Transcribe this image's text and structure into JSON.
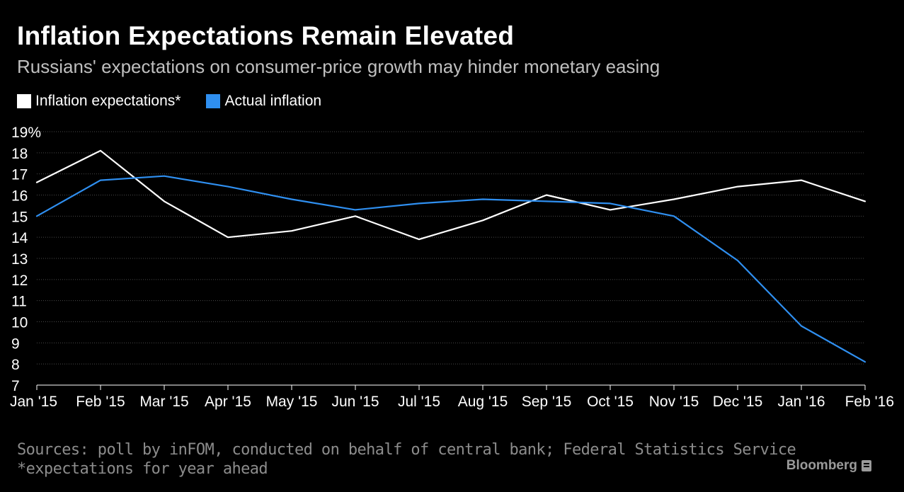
{
  "title": "Inflation Expectations Remain Elevated",
  "subtitle": "Russians' expectations on consumer-price growth may hinder monetary easing",
  "footer": {
    "sources": "Sources: poll by inFOM, conducted on behalf of central bank; Federal Statistics Service",
    "note": "*expectations for year ahead"
  },
  "brand": "Bloomberg",
  "colors": {
    "background": "#000000",
    "expectations": "#ffffff",
    "actual": "#2f8ff0",
    "grid": "#4a4a4a",
    "tick_text": "#ffffff"
  },
  "chart_data": {
    "type": "line",
    "title": "Inflation Expectations Remain Elevated",
    "subtitle": "Russians' expectations on consumer-price growth may hinder monetary easing",
    "categories": [
      "Jan '15",
      "Feb '15",
      "Mar '15",
      "Apr '15",
      "May '15",
      "Jun '15",
      "Jul '15",
      "Aug '15",
      "Sep '15",
      "Oct '15",
      "Nov '15",
      "Dec '15",
      "Jan '16",
      "Feb '16"
    ],
    "series": [
      {
        "name": "Inflation expectations*",
        "color": "#ffffff",
        "values": [
          16.6,
          18.1,
          15.7,
          14.0,
          14.3,
          15.0,
          13.9,
          14.8,
          16.0,
          15.3,
          15.8,
          16.4,
          16.7,
          15.7
        ]
      },
      {
        "name": "Actual inflation",
        "color": "#2f8ff0",
        "values": [
          15.0,
          16.7,
          16.9,
          16.4,
          15.8,
          15.3,
          15.6,
          15.8,
          15.7,
          15.6,
          15.0,
          12.9,
          9.8,
          8.1
        ]
      }
    ],
    "y_ticks": [
      "19%",
      "18",
      "17",
      "16",
      "15",
      "14",
      "13",
      "12",
      "11",
      "10",
      "9",
      "8",
      "7"
    ],
    "ylim": [
      7,
      19
    ],
    "xlabel": "",
    "ylabel": "",
    "grid": true,
    "legend_position": "top-left"
  }
}
